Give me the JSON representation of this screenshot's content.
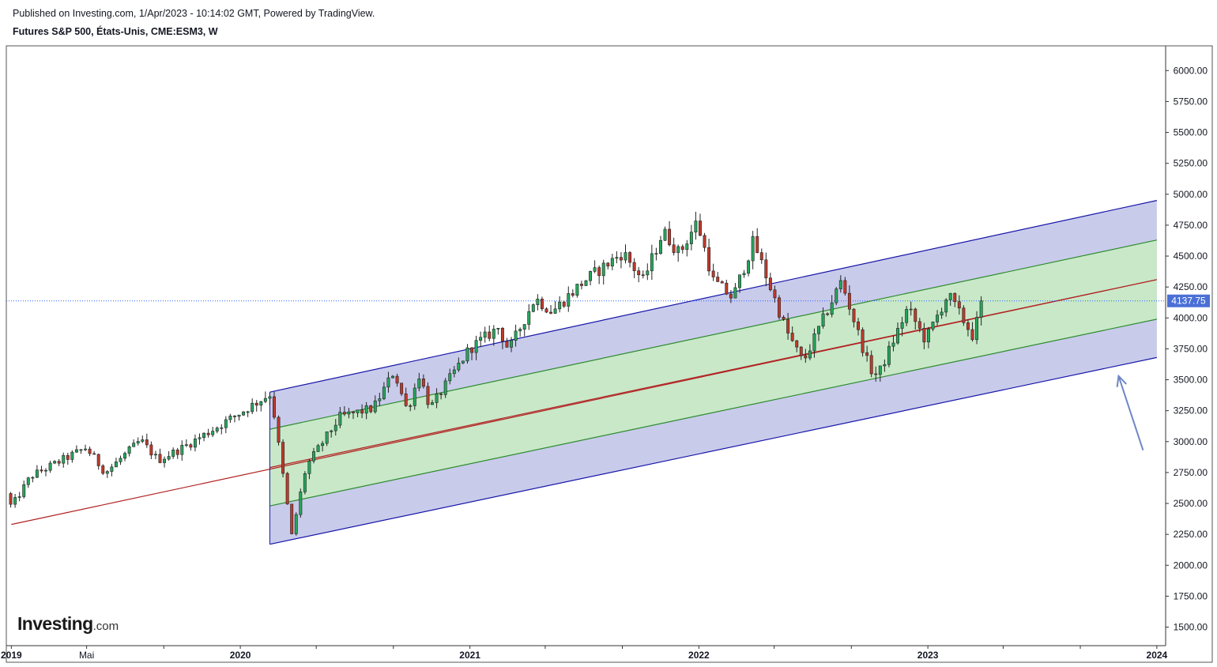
{
  "header": {
    "published": "Published on Investing.com, 1/Apr/2023 - 10:14:02 GMT, Powered by TradingView.",
    "symbol": "Futures S&P 500, États-Unis, CME:ESM3, W"
  },
  "logo": {
    "brand": "Investing",
    "tld": ".com"
  },
  "colors": {
    "bull": "#26a65b",
    "bear": "#c0392b",
    "channel_outer_fill": "#c9cbeb",
    "channel_outer_line": "#1616a8",
    "channel_inner_fill": "#c8e8c8",
    "channel_inner_line": "#2e8b2e",
    "median_line": "#b22222",
    "price_line": "#2962ff",
    "price_tag": "#4a6fd6"
  },
  "chart_data": {
    "type": "candlestick",
    "price_axis": {
      "ylim": [
        1350,
        6200
      ],
      "ticks": [
        "1500.00",
        "1750.00",
        "2000.00",
        "2250.00",
        "2500.00",
        "2750.00",
        "3000.00",
        "3250.00",
        "3500.00",
        "3750.00",
        "4000.00",
        "4250.00",
        "4500.00",
        "4750.00",
        "5000.00",
        "5250.00",
        "5500.00",
        "5750.00",
        "6000.00"
      ]
    },
    "time_axis": {
      "xlim": [
        "2018-12-24",
        "2024-01-15"
      ],
      "labels": [
        {
          "text": "2019",
          "date": "2019-01-01",
          "year": true
        },
        {
          "text": "Mai",
          "date": "2019-05-01",
          "year": false
        },
        {
          "text": "2020",
          "date": "2020-01-01",
          "year": true
        },
        {
          "text": "2021",
          "date": "2021-01-01",
          "year": true
        },
        {
          "text": "2022",
          "date": "2022-01-01",
          "year": true
        },
        {
          "text": "2023",
          "date": "2023-01-01",
          "year": true
        },
        {
          "text": "2024",
          "date": "2024-01-01",
          "year": true
        }
      ],
      "minor_ticks": [
        "2019-09-01",
        "2020-05-01",
        "2020-09-01",
        "2021-05-01",
        "2021-09-01",
        "2022-05-01",
        "2022-09-01",
        "2023-05-01",
        "2023-09-01"
      ]
    },
    "last_price": {
      "value": 4137.75,
      "label": "4137.75"
    },
    "trend_channel": {
      "median_anchor": {
        "start": [
          "2019-01-01",
          2330
        ],
        "end": [
          "2024-01-01",
          4310
        ]
      },
      "outer_upper": {
        "start": [
          "2020-02-17",
          3400
        ],
        "end": [
          "2024-01-01",
          4950
        ]
      },
      "inner_upper": {
        "start": [
          "2020-02-17",
          3100
        ],
        "end": [
          "2024-01-01",
          4630
        ]
      },
      "median": {
        "start": [
          "2020-02-17",
          2790
        ],
        "end": [
          "2024-01-01",
          4310
        ]
      },
      "inner_lower": {
        "start": [
          "2020-02-17",
          2480
        ],
        "end": [
          "2024-01-01",
          3990
        ]
      },
      "outer_lower": {
        "start": [
          "2020-02-17",
          2170
        ],
        "end": [
          "2024-01-01",
          3680
        ]
      }
    },
    "annotation_arrow": {
      "from": [
        "2023-12-10",
        2930
      ],
      "to": [
        "2023-11-01",
        3530
      ]
    },
    "anchors": [
      [
        "2018-12-24",
        2580
      ],
      [
        "2019-01-01",
        2470
      ],
      [
        "2019-02-01",
        2720
      ],
      [
        "2019-04-30",
        2950
      ],
      [
        "2019-05-31",
        2750
      ],
      [
        "2019-07-26",
        3010
      ],
      [
        "2019-08-23",
        2850
      ],
      [
        "2019-10-01",
        2950
      ],
      [
        "2019-12-31",
        3230
      ],
      [
        "2020-02-19",
        3390
      ],
      [
        "2020-03-23",
        2240
      ],
      [
        "2020-04-15",
        2800
      ],
      [
        "2020-06-08",
        3200
      ],
      [
        "2020-07-31",
        3270
      ],
      [
        "2020-09-02",
        3570
      ],
      [
        "2020-09-23",
        3250
      ],
      [
        "2020-10-12",
        3540
      ],
      [
        "2020-10-30",
        3270
      ],
      [
        "2020-12-31",
        3750
      ],
      [
        "2021-02-15",
        3920
      ],
      [
        "2021-03-04",
        3740
      ],
      [
        "2021-04-15",
        4160
      ],
      [
        "2021-05-12",
        4050
      ],
      [
        "2021-06-30",
        4290
      ],
      [
        "2021-09-02",
        4530
      ],
      [
        "2021-10-04",
        4300
      ],
      [
        "2021-11-05",
        4700
      ],
      [
        "2021-12-01",
        4520
      ],
      [
        "2021-12-29",
        4780
      ],
      [
        "2022-01-24",
        4300
      ],
      [
        "2022-02-24",
        4160
      ],
      [
        "2022-03-29",
        4620
      ],
      [
        "2022-05-20",
        3900
      ],
      [
        "2022-06-16",
        3640
      ],
      [
        "2022-08-16",
        4300
      ],
      [
        "2022-09-30",
        3590
      ],
      [
        "2022-10-13",
        3530
      ],
      [
        "2022-11-30",
        4080
      ],
      [
        "2022-12-28",
        3820
      ],
      [
        "2023-02-02",
        4190
      ],
      [
        "2023-03-13",
        3860
      ],
      [
        "2023-03-31",
        4137.75
      ]
    ]
  }
}
